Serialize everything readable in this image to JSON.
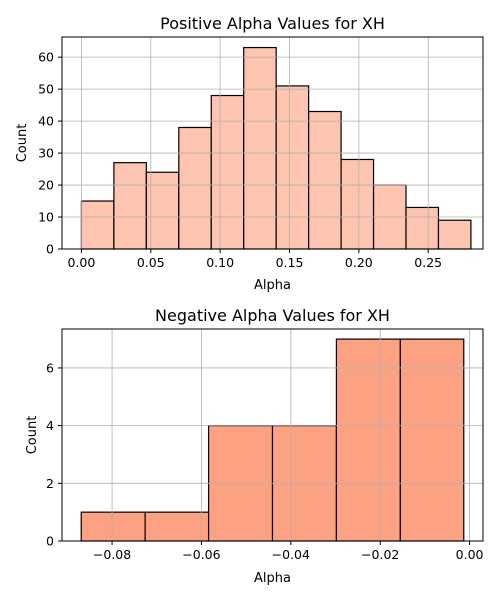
{
  "chart_data": [
    {
      "type": "bar",
      "title": "Positive Alpha Values for XH",
      "xlabel": "Alpha",
      "ylabel": "Count",
      "bar_color": "#fdc4b0",
      "edge_color": "#000000",
      "grid": true,
      "xlim": [
        -0.014,
        0.2895
      ],
      "ylim": [
        0,
        66.3
      ],
      "xticks": [
        0.0,
        0.05,
        0.1,
        0.15,
        0.2,
        0.25
      ],
      "xtick_labels": [
        "0.00",
        "0.05",
        "0.10",
        "0.15",
        "0.20",
        "0.25"
      ],
      "yticks": [
        0,
        10,
        20,
        30,
        40,
        50,
        60
      ],
      "ytick_labels": [
        "0",
        "10",
        "20",
        "30",
        "40",
        "50",
        "60"
      ],
      "bins": [
        {
          "x0": 0.0,
          "x1": 0.0234,
          "count": 15
        },
        {
          "x0": 0.0234,
          "x1": 0.0468,
          "count": 27
        },
        {
          "x0": 0.0468,
          "x1": 0.0702,
          "count": 24
        },
        {
          "x0": 0.0702,
          "x1": 0.0936,
          "count": 38
        },
        {
          "x0": 0.0936,
          "x1": 0.117,
          "count": 48
        },
        {
          "x0": 0.117,
          "x1": 0.1404,
          "count": 63
        },
        {
          "x0": 0.1404,
          "x1": 0.1638,
          "count": 51
        },
        {
          "x0": 0.1638,
          "x1": 0.1872,
          "count": 43
        },
        {
          "x0": 0.1872,
          "x1": 0.2106,
          "count": 28
        },
        {
          "x0": 0.2106,
          "x1": 0.234,
          "count": 20
        },
        {
          "x0": 0.234,
          "x1": 0.2574,
          "count": 13
        },
        {
          "x0": 0.2574,
          "x1": 0.2808,
          "count": 9
        }
      ]
    },
    {
      "type": "bar",
      "title": "Negative Alpha Values for XH",
      "xlabel": "Alpha",
      "ylabel": "Count",
      "bar_color": "#fca283",
      "edge_color": "#000000",
      "grid": true,
      "xlim": [
        -0.0912,
        0.003
      ],
      "ylim": [
        0,
        7.35
      ],
      "xticks": [
        -0.08,
        -0.06,
        -0.04,
        -0.02,
        0.0
      ],
      "xtick_labels": [
        "−0.08",
        "−0.06",
        "−0.04",
        "−0.02",
        "0.00"
      ],
      "yticks": [
        0,
        2,
        4,
        6
      ],
      "ytick_labels": [
        "0",
        "2",
        "4",
        "6"
      ],
      "bins": [
        {
          "x0": -0.0869,
          "x1": -0.0726,
          "count": 1
        },
        {
          "x0": -0.0726,
          "x1": -0.0584,
          "count": 1
        },
        {
          "x0": -0.0584,
          "x1": -0.0441,
          "count": 4
        },
        {
          "x0": -0.0441,
          "x1": -0.0298,
          "count": 4
        },
        {
          "x0": -0.0298,
          "x1": -0.0155,
          "count": 7
        },
        {
          "x0": -0.0155,
          "x1": -0.0013,
          "count": 7
        }
      ]
    }
  ]
}
